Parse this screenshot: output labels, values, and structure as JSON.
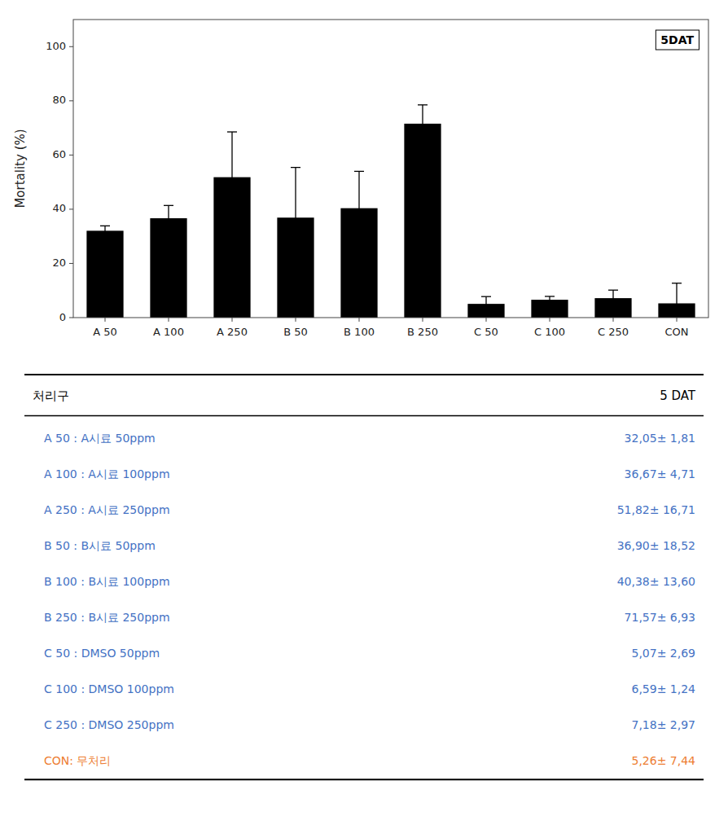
{
  "chart_data": {
    "type": "bar",
    "categories": [
      "A 50",
      "A 100",
      "A 250",
      "B 50",
      "B 100",
      "B 250",
      "C 50",
      "C 100",
      "C 250",
      "CON"
    ],
    "values": [
      32.05,
      36.67,
      51.82,
      36.9,
      40.38,
      71.57,
      5.07,
      6.59,
      7.18,
      5.26
    ],
    "errors": [
      1.81,
      4.71,
      16.71,
      18.52,
      13.6,
      6.93,
      2.69,
      1.24,
      2.97,
      7.44
    ],
    "color": "#000000",
    "ylabel": "Mortality (%)",
    "ylim": [
      0,
      110
    ],
    "yticks": [
      0,
      20,
      40,
      60,
      80,
      100
    ],
    "grid": false,
    "annotation": "5DAT",
    "table": {
      "header": [
        "처리구",
        "5 DAT"
      ],
      "rows": [
        [
          "A  50 : A시료  50ppm",
          "32,05± 1,81"
        ],
        [
          "A  100 : A시료  100ppm",
          "36,67± 4,71"
        ],
        [
          "A  250 : A시료  250ppm",
          "51,82± 16,71"
        ],
        [
          "B  50 : B시료  50ppm",
          "36,90± 18,52"
        ],
        [
          "B  100 : B시료  100ppm",
          "40,38± 13,60"
        ],
        [
          "B  250 : B시료  250ppm",
          "71,57± 6,93"
        ],
        [
          "C  50 : DMSO  50ppm",
          "5,07± 2,69"
        ],
        [
          "C  100 : DMSO  100ppm",
          "6,59± 1,24"
        ],
        [
          "C  250 : DMSO  250ppm",
          "7,18± 2,97"
        ],
        [
          "CON: 무처리",
          "5,26± 7,44"
        ]
      ],
      "colors": [
        "#4472c4",
        "#4472c4",
        "#4472c4",
        "#4472c4",
        "#4472c4",
        "#4472c4",
        "#4472c4",
        "#4472c4",
        "#4472c4",
        "#ed7d31"
      ]
    }
  }
}
